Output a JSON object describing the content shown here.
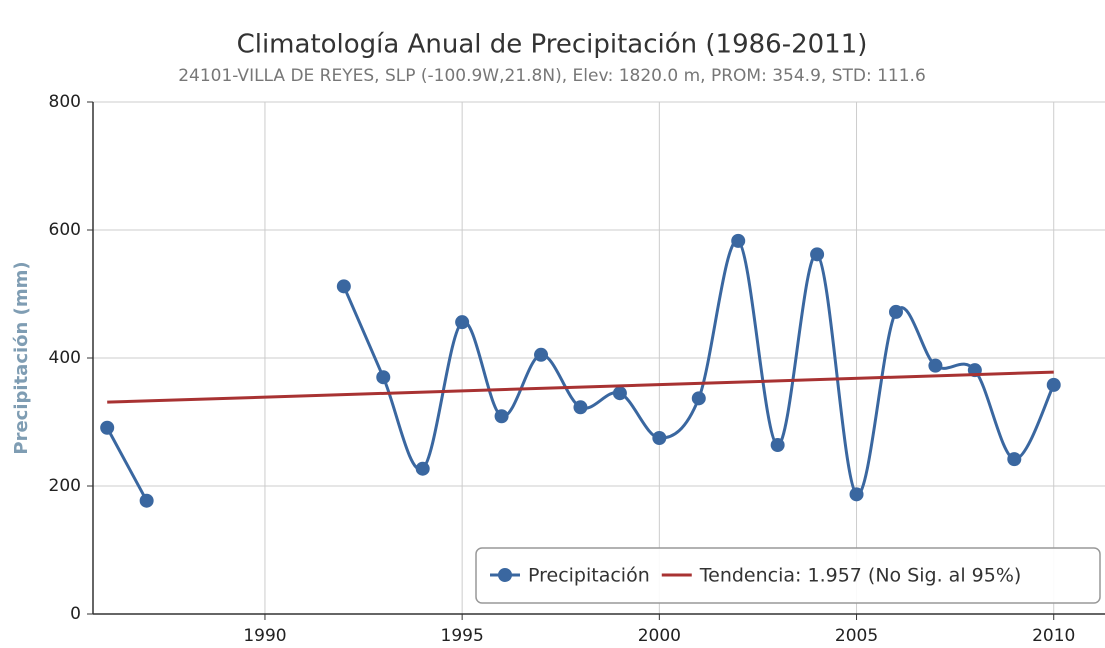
{
  "chart_data": {
    "type": "line",
    "title": "Climatología Anual de Precipitación (1986-2011)",
    "subtitle": "24101-VILLA DE REYES, SLP (-100.9W,21.8N), Elev: 1820.0 m, PROM: 354.9, STD: 111.6",
    "y_label": "Precipitación (mm)",
    "x": [
      1986,
      1987,
      1988,
      1989,
      1990,
      1991,
      1992,
      1993,
      1994,
      1995,
      1996,
      1997,
      1998,
      1999,
      2000,
      2001,
      2002,
      2003,
      2004,
      2005,
      2006,
      2007,
      2008,
      2009,
      2010
    ],
    "series": [
      {
        "name": "Precipitación",
        "color": "#3a67a0",
        "marker": "circle",
        "smooth": true,
        "values": [
          291,
          177,
          null,
          null,
          null,
          null,
          512,
          370,
          227,
          456,
          309,
          405,
          323,
          345,
          275,
          337,
          583,
          264,
          562,
          187,
          472,
          388,
          381,
          242,
          358
        ]
      },
      {
        "name": "Tendencia: 1.957 (No Sig. al 95%)",
        "color": "#a83232",
        "marker": "none",
        "smooth": false,
        "x": [
          1986,
          2010
        ],
        "values": [
          331,
          378
        ]
      }
    ],
    "xlim": [
      1985.64,
      2011.3
    ],
    "xticks": [
      1990,
      1995,
      2000,
      2005,
      2010
    ],
    "ylim": [
      0,
      800
    ],
    "yticks": [
      0,
      200,
      400,
      600,
      800
    ],
    "grid": true,
    "legend": "lower right"
  }
}
